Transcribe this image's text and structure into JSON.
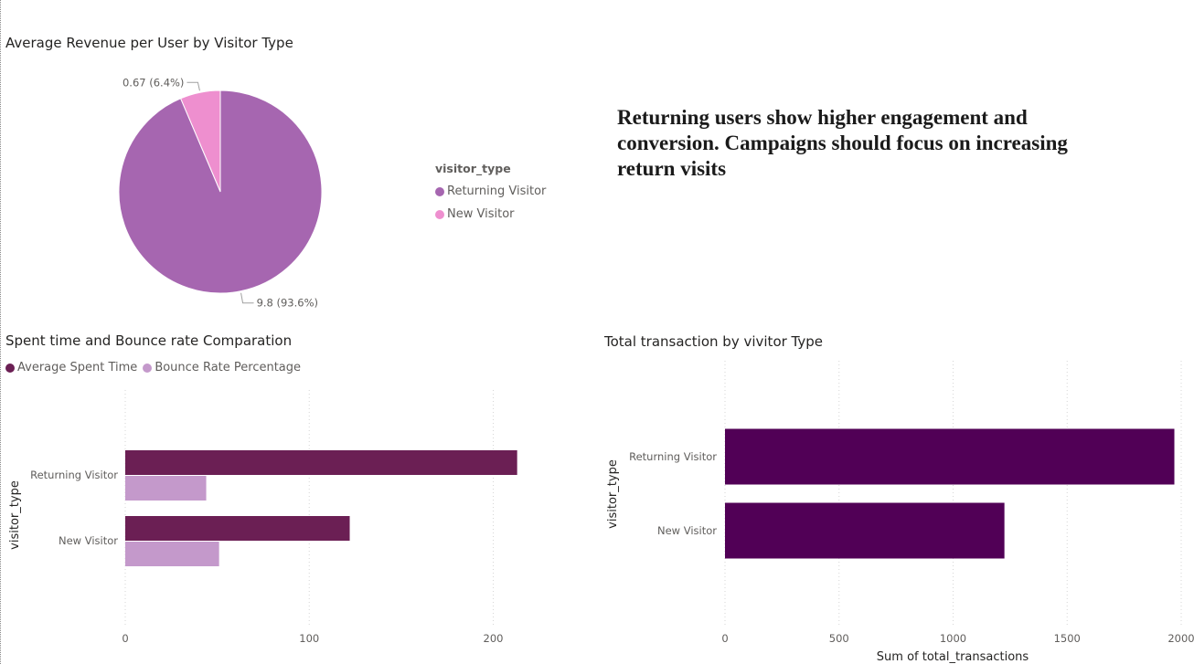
{
  "insight_text": "Returning users show higher engagement and conversion. Campaigns should focus on increasing return visits",
  "chart_data": [
    {
      "id": "pie",
      "type": "pie",
      "title": "Average Revenue per User by Visitor Type",
      "legend_title": "visitor_type",
      "legend_position": "right",
      "slices": [
        {
          "label": "Returning Visitor",
          "value": 9.8,
          "percent": 93.6,
          "data_label": "9.8 (93.6%)",
          "color": "#a666b0"
        },
        {
          "label": "New Visitor",
          "value": 0.67,
          "percent": 6.4,
          "data_label": "0.67 (6.4%)",
          "color": "#ee8fcf"
        }
      ]
    },
    {
      "id": "cluster",
      "type": "bar",
      "orientation": "horizontal",
      "title": "Spent time and Bounce rate Comparation",
      "ylabel": "visitor_type",
      "xlabel": "",
      "categories": [
        "Returning Visitor",
        "New Visitor"
      ],
      "series": [
        {
          "name": "Average Spent Time",
          "values": [
            213,
            122
          ],
          "color": "#6b1f54"
        },
        {
          "name": "Bounce Rate Percentage",
          "values": [
            44,
            51
          ],
          "color": "#c499cb"
        }
      ],
      "xlim": [
        0,
        240
      ],
      "xticks": [
        "0",
        "100",
        "200"
      ],
      "grid": true,
      "legend_position": "top-left"
    },
    {
      "id": "total",
      "type": "bar",
      "orientation": "horizontal",
      "title": "Total transaction by vivitor Type",
      "ylabel": "visitor_type",
      "xlabel": "Sum of total_transactions",
      "categories": [
        "Returning Visitor",
        "New Visitor"
      ],
      "values": [
        1970,
        1225
      ],
      "color": "#510056",
      "xlim": [
        0,
        2000
      ],
      "xticks": [
        "0",
        "500",
        "1000",
        "1500",
        "2000"
      ],
      "grid": true
    }
  ]
}
